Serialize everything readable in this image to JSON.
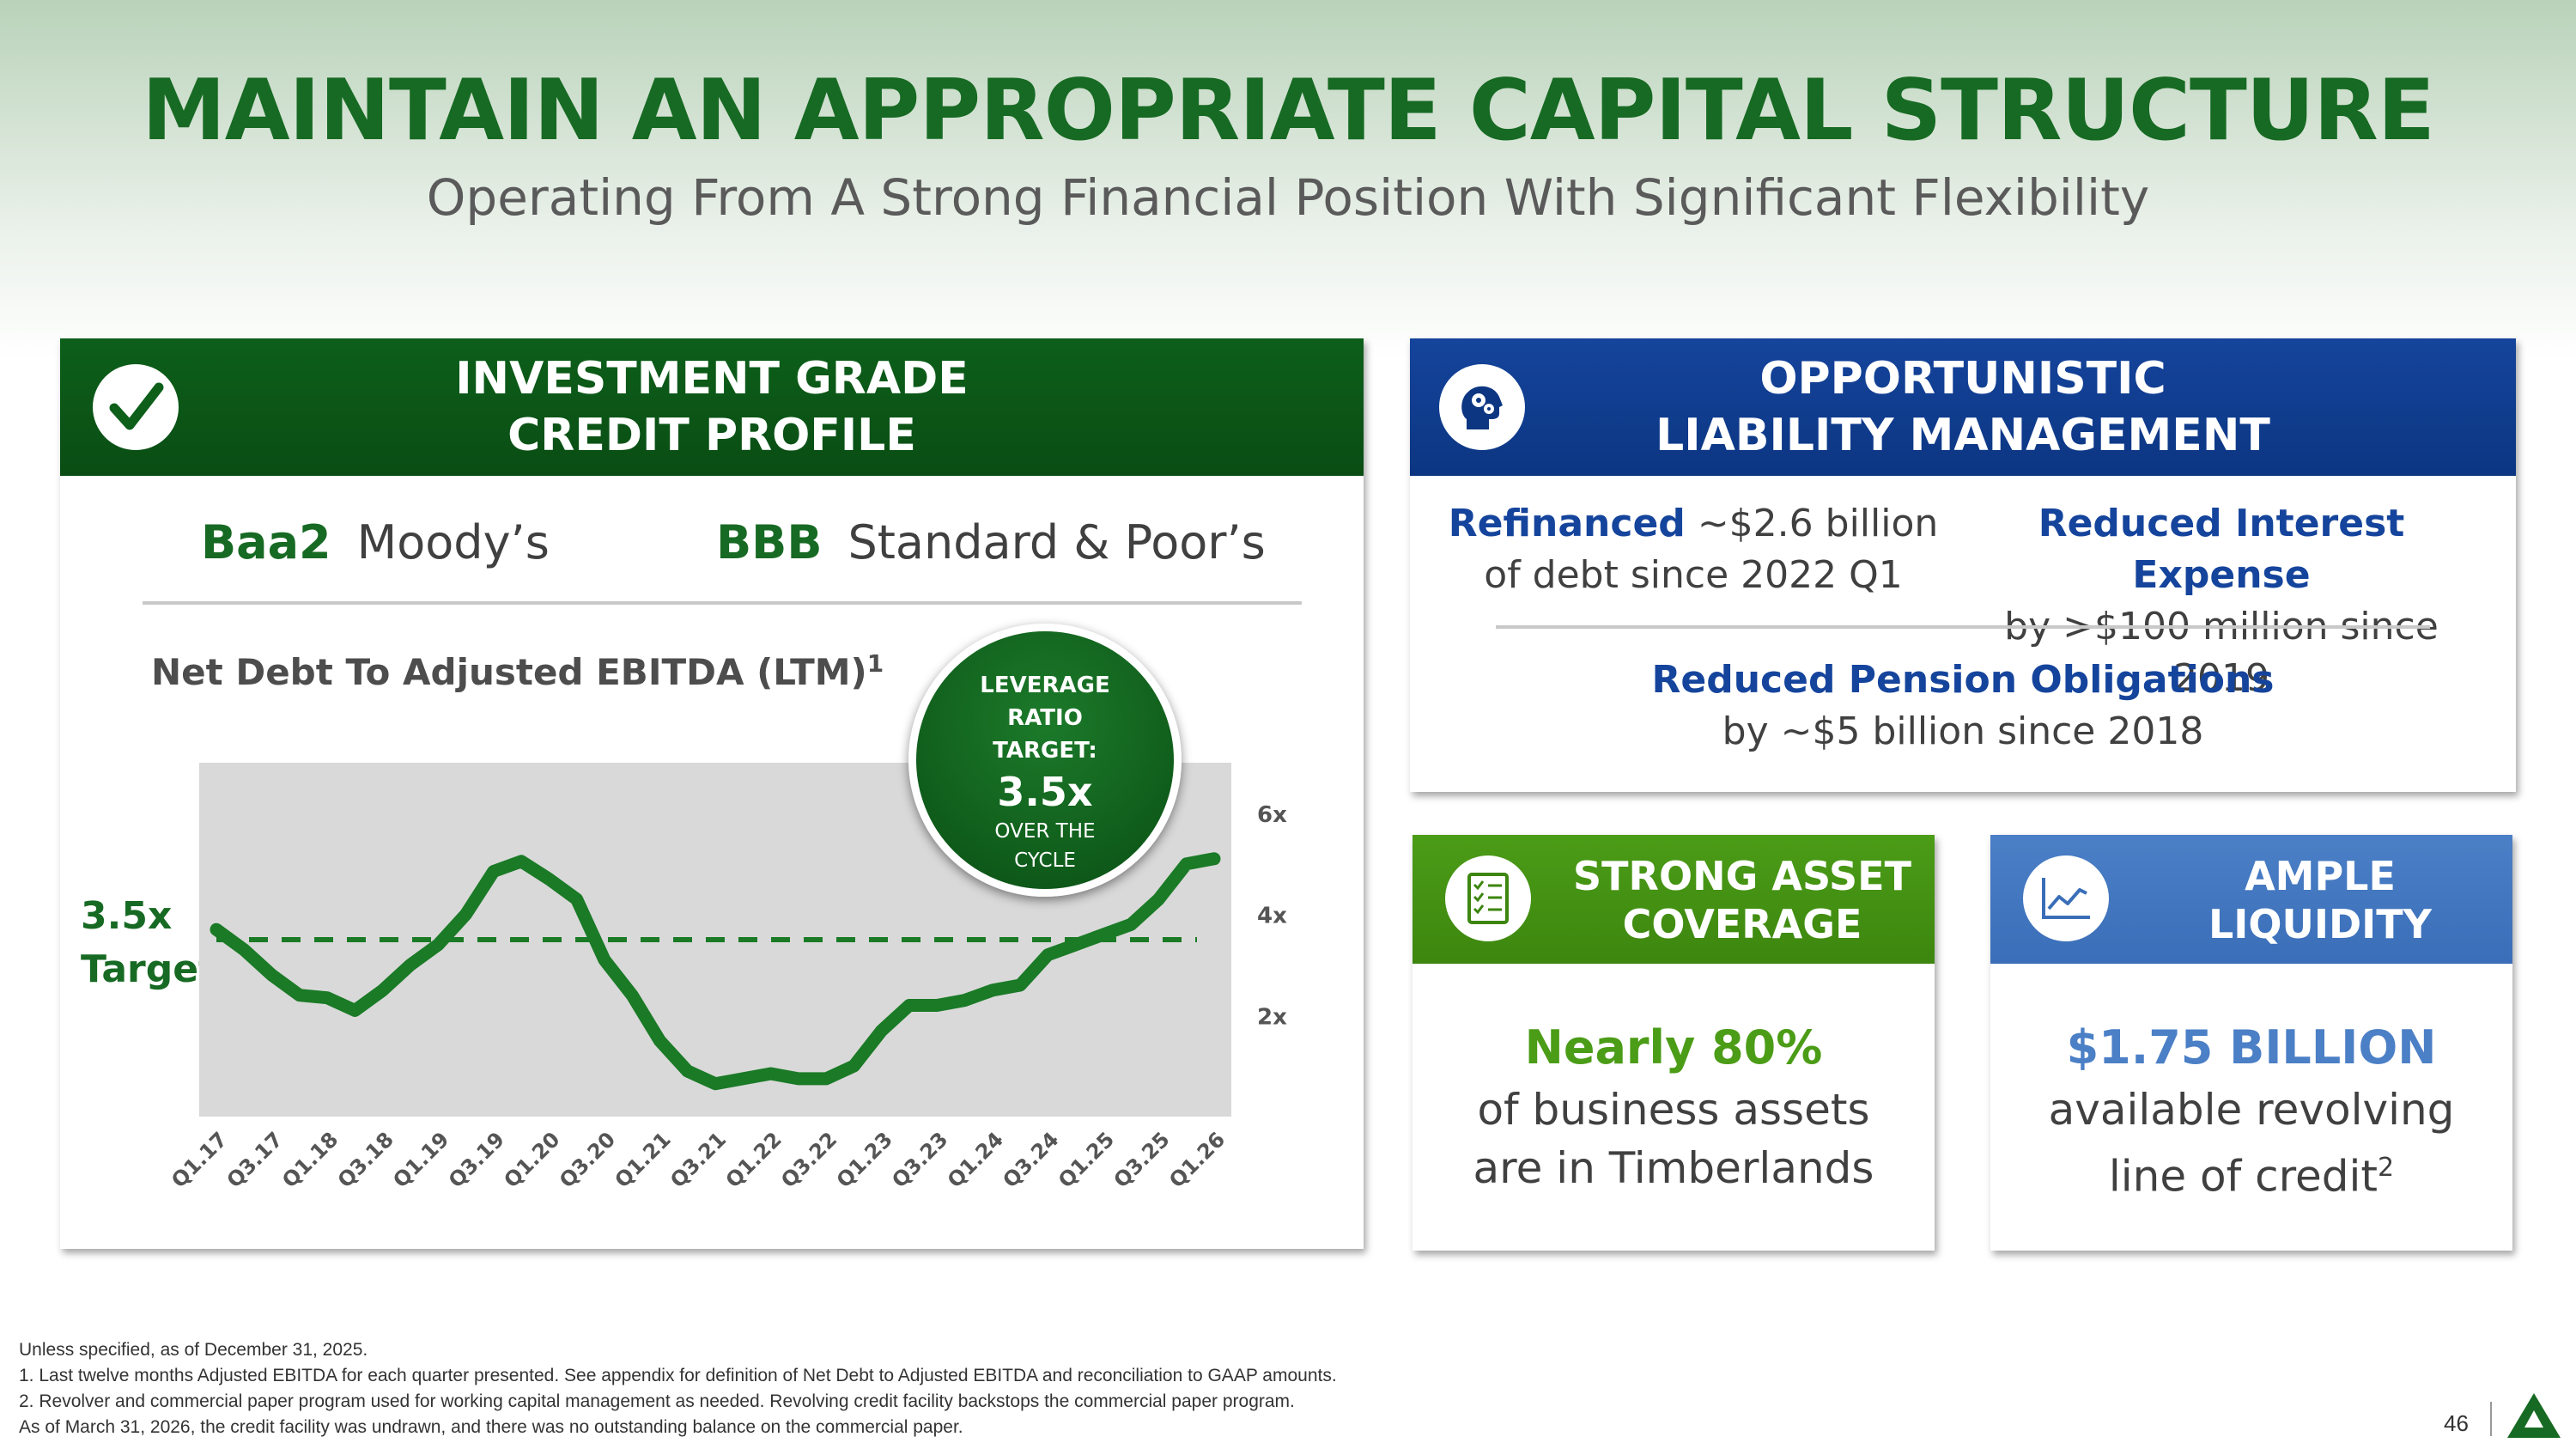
{
  "title": "MAINTAIN AN APPROPRIATE CAPITAL STRUCTURE",
  "subtitle": "Operating From A Strong Financial Position With Significant Flexibility",
  "credit": {
    "header_line1": "INVESTMENT GRADE",
    "header_line2": "CREDIT PROFILE",
    "moody_rating": "Baa2",
    "moody_name": "Moody’s",
    "sp_rating": "BBB",
    "sp_name": "Standard & Poor’s",
    "chart_title": "Net Debt To Adjusted EBITDA (LTM)",
    "chart_title_sup": "1",
    "target_line1": "3.5x",
    "target_line2": "Target",
    "bubble": {
      "line1": "LEVERAGE",
      "line2": "RATIO",
      "line3": "TARGET:",
      "value": "3.5x",
      "line4": "OVER THE",
      "line5": "CYCLE"
    }
  },
  "chart_data": {
    "type": "line",
    "title": "Net Debt To Adjusted EBITDA (LTM)",
    "x": [
      "Q1.17",
      "Q2.17",
      "Q3.17",
      "Q4.17",
      "Q1.18",
      "Q2.18",
      "Q3.18",
      "Q4.18",
      "Q1.19",
      "Q2.19",
      "Q3.19",
      "Q4.19",
      "Q1.20",
      "Q2.20",
      "Q3.20",
      "Q4.20",
      "Q1.21",
      "Q2.21",
      "Q3.21",
      "Q4.21",
      "Q1.22",
      "Q2.22",
      "Q3.22",
      "Q4.22",
      "Q1.23",
      "Q2.23",
      "Q3.23",
      "Q4.23",
      "Q1.24",
      "Q2.24",
      "Q3.24",
      "Q4.24",
      "Q1.25",
      "Q2.25",
      "Q3.25",
      "Q4.25",
      "Q1.26"
    ],
    "x_tick_labels": [
      "Q1.17",
      "Q3.17",
      "Q1.18",
      "Q3.18",
      "Q1.19",
      "Q3.19",
      "Q1.20",
      "Q3.20",
      "Q1.21",
      "Q3.21",
      "Q1.22",
      "Q3.22",
      "Q1.23",
      "Q3.23",
      "Q1.24",
      "Q3.24",
      "Q1.25",
      "Q3.25",
      "Q1.26"
    ],
    "series": [
      {
        "values": [
          3.7,
          3.3,
          2.8,
          2.4,
          2.35,
          2.1,
          2.5,
          3.0,
          3.4,
          4.0,
          4.85,
          5.05,
          4.7,
          4.3,
          3.1,
          2.4,
          1.5,
          0.9,
          0.65,
          0.75,
          0.85,
          0.75,
          0.75,
          1.0,
          1.7,
          2.2,
          2.2,
          2.3,
          2.5,
          2.6,
          3.2,
          3.4,
          3.6,
          3.8,
          4.3,
          5.0,
          5.1
        ]
      },
      {
        "values": [
          3.5,
          3.5,
          3.5,
          3.5,
          3.5,
          3.5,
          3.5,
          3.5,
          3.5,
          3.5,
          3.5,
          3.5,
          3.5,
          3.5,
          3.5,
          3.5,
          3.5,
          3.5,
          3.5,
          3.5,
          3.5,
          3.5,
          3.5,
          3.5,
          3.5,
          3.5,
          3.5,
          3.5,
          3.5,
          3.5,
          3.5,
          3.5,
          3.5,
          3.5,
          3.5,
          3.5,
          3.5
        ]
      }
    ],
    "y_ticks": [
      "2x",
      "4x",
      "6x"
    ],
    "ylim": [
      0,
      7
    ],
    "colors": {
      "line": "#1a7a26",
      "plot_bg": "#d9d9d9"
    }
  },
  "liability": {
    "header_line1": "OPPORTUNISTIC",
    "header_line2": "LIABILITY MANAGEMENT",
    "refi_bold": "Refinanced",
    "refi_rest": "~$2.6 billion",
    "refi_line2": "of debt since 2022 Q1",
    "interest_bold": "Reduced Interest Expense",
    "interest_line2": "by >$100 million since 2019",
    "pension_bold": "Reduced Pension Obligations",
    "pension_line2": "by ~$5 billion since 2018"
  },
  "asset": {
    "header_line1": "STRONG ASSET",
    "header_line2": "COVERAGE",
    "big": "Nearly 80%",
    "line1": "of business assets",
    "line2": "are in Timberlands"
  },
  "liquidity": {
    "header_line1": "AMPLE",
    "header_line2": "LIQUIDITY",
    "big": "$1.75 BILLION",
    "line1": "available revolving",
    "line2": "line of credit",
    "sup": "2"
  },
  "footnotes": [
    "Unless specified, as of December 31, 2025.",
    "1. Last twelve months Adjusted EBITDA for each quarter presented. See appendix for definition of Net Debt to Adjusted EBITDA and reconciliation to GAAP amounts.",
    "2. Revolver and commercial paper program used for working capital management as needed. Revolving credit facility backstops the commercial paper program.",
    "As of March 31, 2026, the credit facility was undrawn, and there was no outstanding balance on the commercial paper."
  ],
  "page_number": "46",
  "colors": {
    "green": "#176a23",
    "blue": "#15449c",
    "light_green": "#4b9c17",
    "light_blue": "#4b7fc6"
  }
}
